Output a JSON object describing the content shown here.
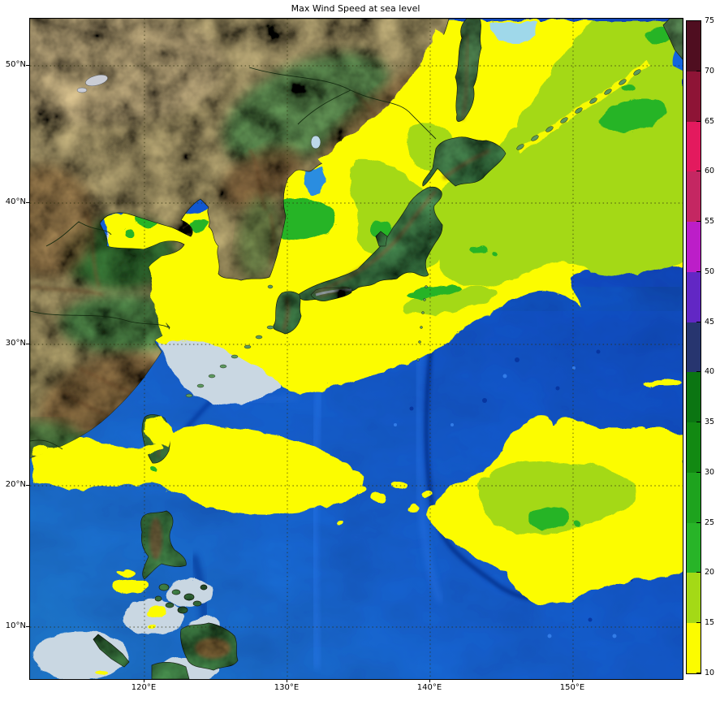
{
  "title": "Max Wind Speed at sea level",
  "y_axis": {
    "ticks": [
      "50°N",
      "40°N",
      "30°N",
      "20°N",
      "10°N"
    ]
  },
  "x_axis": {
    "ticks": [
      "120°E",
      "130°E",
      "140°E",
      "150°E"
    ]
  },
  "colorbar": {
    "tick_labels_top_to_bottom": [
      "75",
      "70",
      "65",
      "60",
      "55",
      "50",
      "45",
      "40",
      "35",
      "30",
      "25",
      "20",
      "15",
      "10"
    ],
    "segments_top_to_bottom": [
      {
        "range": "70-75",
        "color": "#4f0e20"
      },
      {
        "range": "65-70",
        "color": "#8e1436"
      },
      {
        "range": "60-65",
        "color": "#e31a5e"
      },
      {
        "range": "55-60",
        "color": "#c42762"
      },
      {
        "range": "50-55",
        "color": "#bc1ec8"
      },
      {
        "range": "45-50",
        "color": "#6227c4"
      },
      {
        "range": "40-45",
        "color": "#27356f"
      },
      {
        "range": "35-40",
        "color": "#0b7512"
      },
      {
        "range": "30-35",
        "color": "#128912"
      },
      {
        "range": "25-30",
        "color": "#1ea31e"
      },
      {
        "range": "20-25",
        "color": "#28b428"
      },
      {
        "range": "15-20",
        "color": "#a4d916"
      },
      {
        "range": "10-15",
        "color": "#fcfc00"
      }
    ]
  },
  "map_palette": {
    "wind_10_15": "#fcfc00",
    "wind_15_20": "#a4d916",
    "wind_20_25": "#28b428",
    "ocean_deep": "#0a44c6",
    "shelf_sea": "#c9d7e2",
    "land_arid": "#d5bd85",
    "land_plain": "#4f9e55",
    "mountains": "#9c6f44"
  }
}
